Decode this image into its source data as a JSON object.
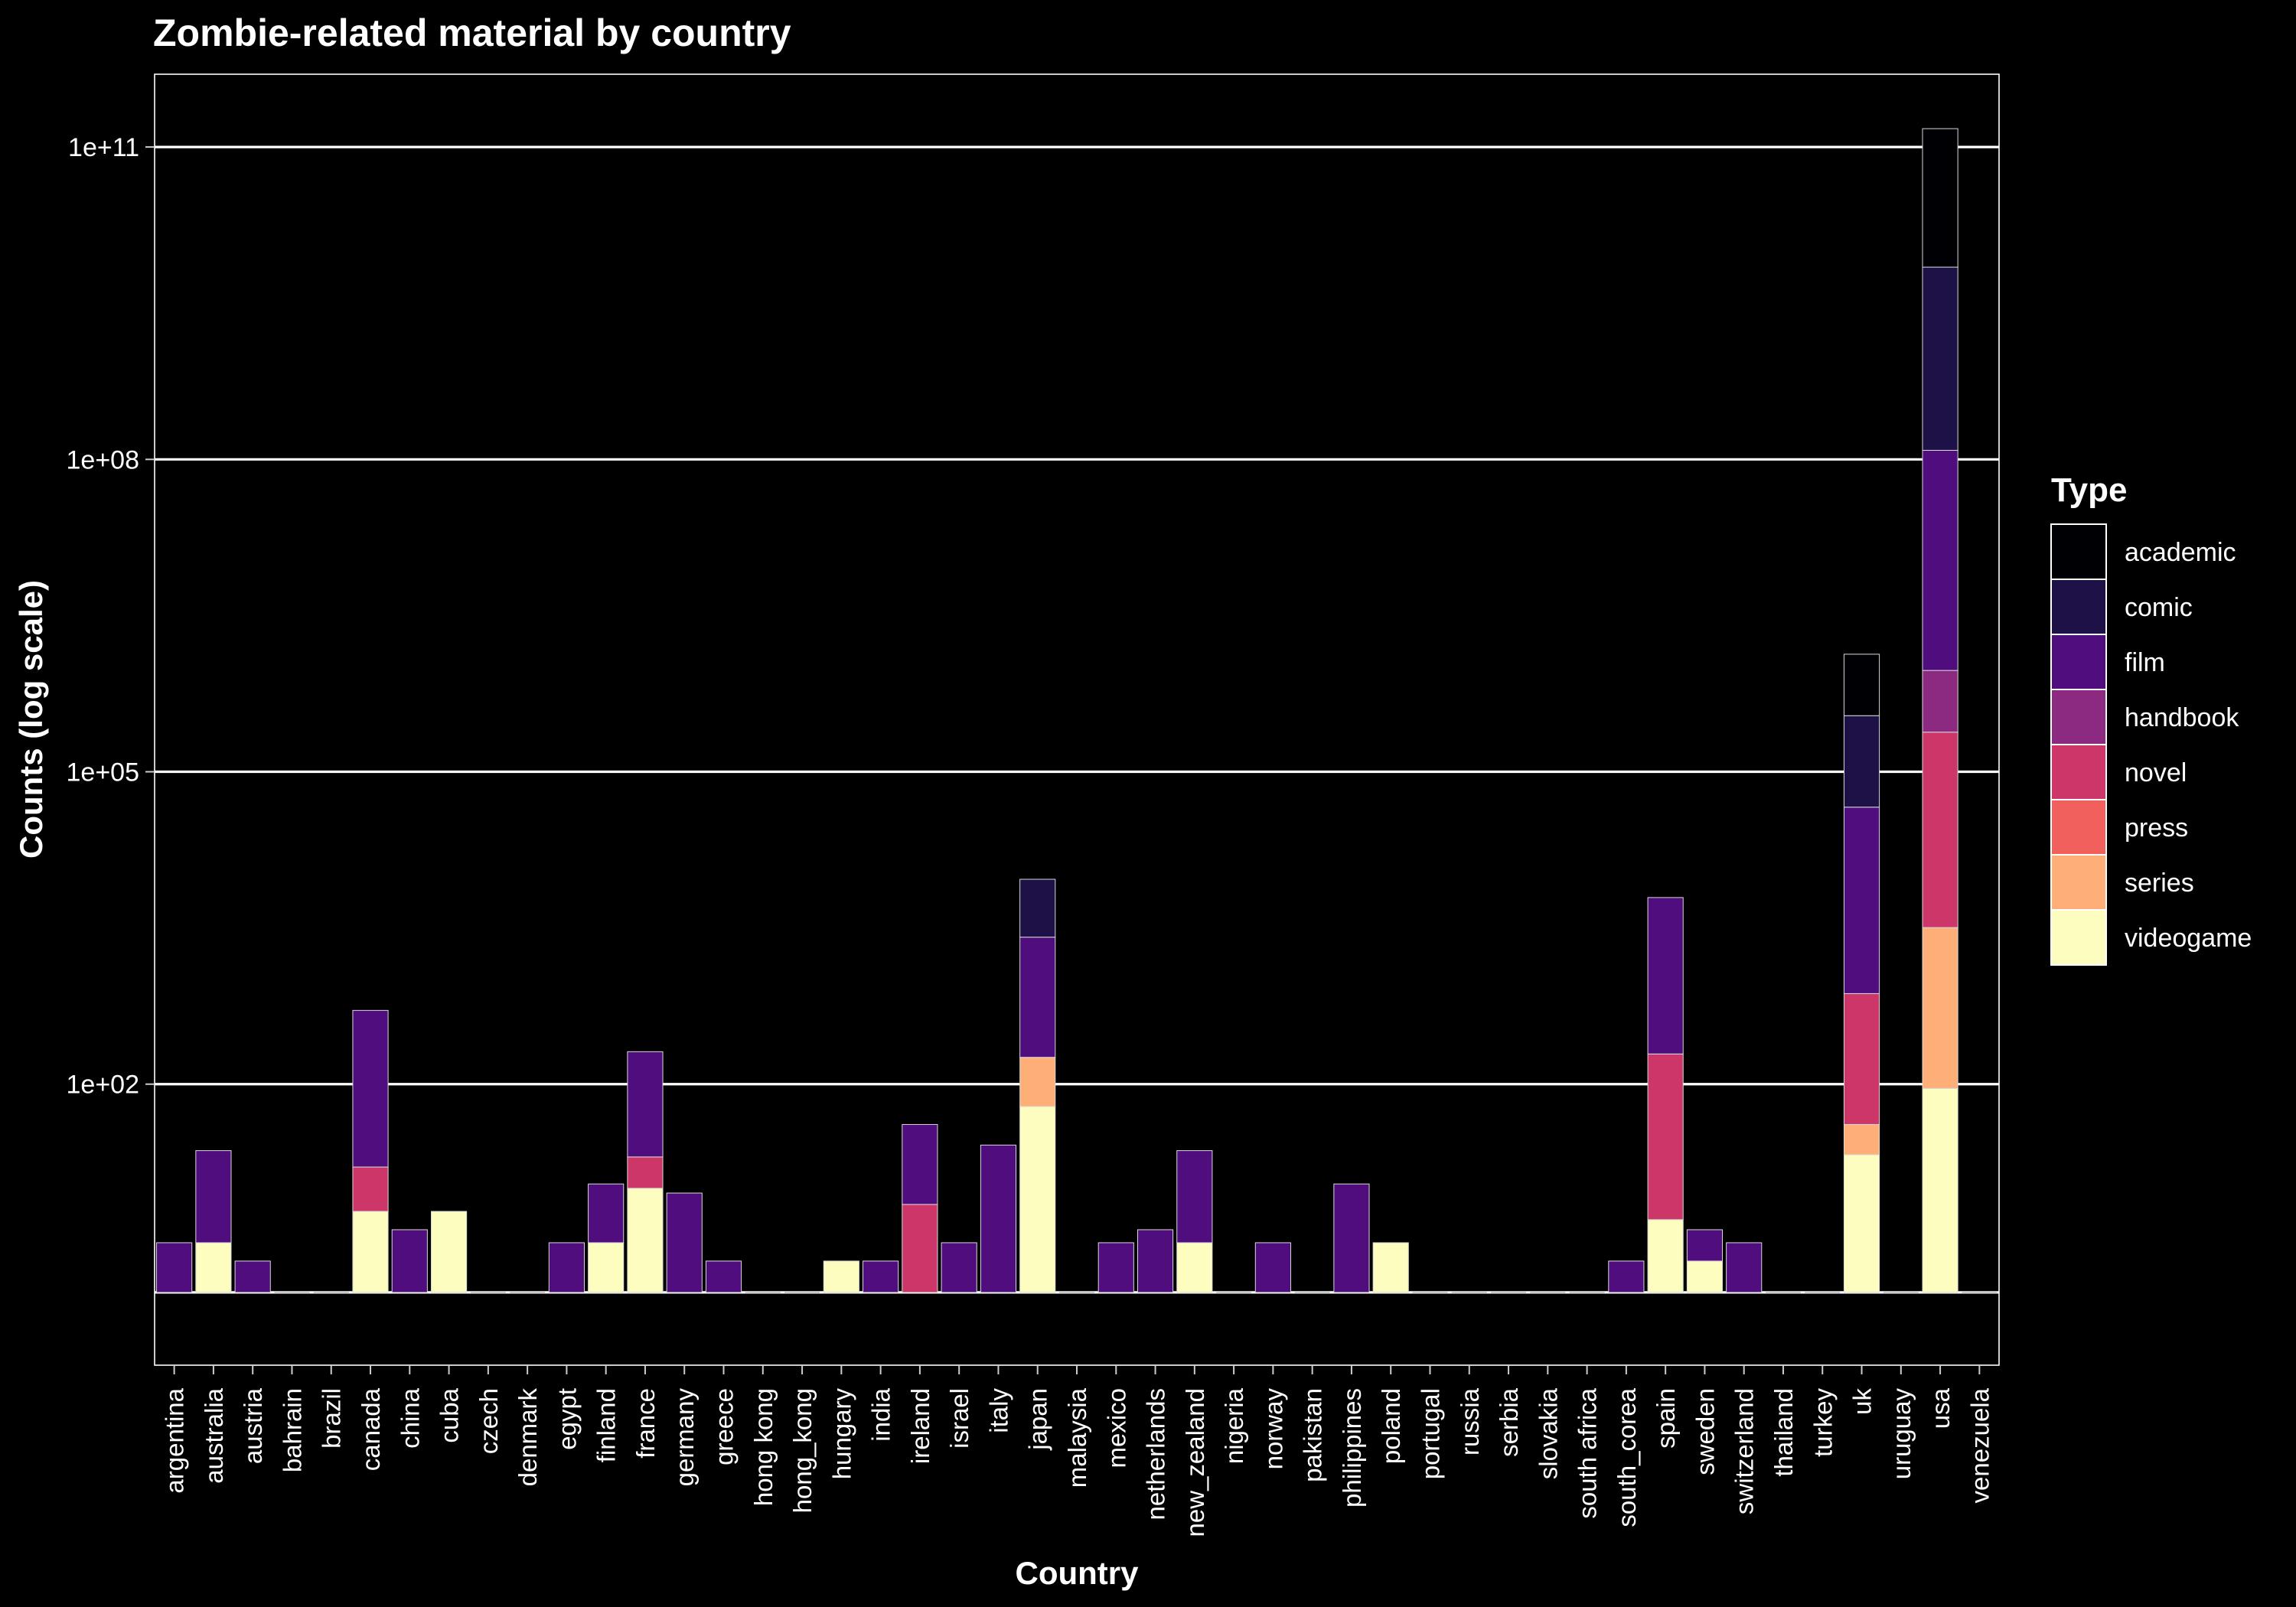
{
  "chart_data": {
    "type": "bar",
    "stacked": true,
    "title": "Zombie-related material by country",
    "xlabel": "Country",
    "ylabel": "Counts (log scale)",
    "yscale": "log10",
    "ylim": [
      0.2,
      500000000000
    ],
    "yticks": [
      100,
      100000,
      100000000,
      100000000000
    ],
    "ytick_labels": [
      "1e+02",
      "1e+05",
      "1e+08",
      "1e+11"
    ],
    "grid": true,
    "legend": {
      "title": "Type",
      "placement": "right"
    },
    "categories": [
      "argentina",
      "australia",
      "austria",
      "bahrain",
      "brazil",
      "canada",
      "china",
      "cuba",
      "czech",
      "denmark",
      "egypt",
      "finland",
      "france",
      "germany",
      "greece",
      "hong kong",
      "hong_kong",
      "hungary",
      "india",
      "ireland",
      "israel",
      "italy",
      "japan",
      "malaysia",
      "mexico",
      "netherlands",
      "new_zealand",
      "nigeria",
      "norway",
      "pakistan",
      "philippines",
      "poland",
      "portugal",
      "russia",
      "serbia",
      "slovakia",
      "south africa",
      "south_corea",
      "spain",
      "sweden",
      "switzerland",
      "thailand",
      "turkey",
      "uk",
      "uruguay",
      "usa",
      "venezuela"
    ],
    "series": [
      {
        "name": "videogame",
        "color": "#FCFDBF",
        "values": [
          0,
          2,
          0,
          0,
          0,
          5,
          0,
          5,
          0,
          0,
          0,
          2,
          9,
          0,
          0,
          0,
          0,
          1,
          0,
          0,
          0,
          0,
          60,
          0,
          0,
          0,
          2,
          0,
          0,
          0,
          0,
          2,
          0,
          0,
          0,
          0,
          0,
          0,
          4,
          1,
          0,
          0,
          0,
          20,
          0,
          90,
          0
        ]
      },
      {
        "name": "series",
        "color": "#FEAF77",
        "values": [
          0,
          0,
          0,
          0,
          0,
          0,
          0,
          0,
          0,
          0,
          0,
          0,
          0,
          0,
          0,
          0,
          0,
          0,
          0,
          0,
          0,
          0,
          120,
          0,
          0,
          0,
          0,
          0,
          0,
          0,
          0,
          0,
          0,
          0,
          0,
          0,
          0,
          0,
          0,
          0,
          0,
          0,
          0,
          20,
          0,
          3100,
          0
        ]
      },
      {
        "name": "press",
        "color": "#F1605D",
        "values": [
          0,
          0,
          0,
          0,
          0,
          0,
          0,
          0,
          0,
          0,
          0,
          0,
          0,
          0,
          0,
          0,
          0,
          0,
          0,
          0,
          0,
          0,
          0,
          0,
          0,
          0,
          0,
          0,
          0,
          0,
          0,
          0,
          0,
          0,
          0,
          0,
          0,
          0,
          0,
          0,
          0,
          0,
          0,
          0,
          0,
          0,
          0
        ]
      },
      {
        "name": "novel",
        "color": "#CD3668",
        "values": [
          0,
          0,
          0,
          0,
          0,
          10,
          0,
          0,
          0,
          0,
          0,
          0,
          10,
          0,
          0,
          0,
          0,
          0,
          0,
          6,
          0,
          0,
          0,
          0,
          0,
          0,
          0,
          0,
          0,
          0,
          0,
          0,
          0,
          0,
          0,
          0,
          0,
          0,
          190,
          0,
          0,
          0,
          0,
          700,
          0,
          237000,
          0
        ]
      },
      {
        "name": "handbook",
        "color": "#8C2981",
        "values": [
          0,
          0,
          0,
          0,
          0,
          0,
          0,
          0,
          0,
          0,
          0,
          0,
          0,
          0,
          0,
          0,
          0,
          0,
          0,
          0,
          0,
          0,
          0,
          0,
          0,
          0,
          0,
          0,
          0,
          0,
          0,
          0,
          0,
          0,
          0,
          0,
          0,
          0,
          0,
          0,
          0,
          0,
          0,
          0,
          0,
          700000,
          0
        ]
      },
      {
        "name": "film",
        "color": "#4F0D7D",
        "values": [
          2,
          20,
          1,
          0,
          0,
          495,
          3,
          0,
          0,
          0,
          2,
          8,
          185,
          8,
          1,
          0,
          0,
          0,
          1,
          34,
          2,
          25,
          2400,
          0,
          2,
          3,
          20,
          0,
          2,
          0,
          10,
          0,
          0,
          0,
          0,
          0,
          0,
          1,
          6000,
          2,
          2,
          0,
          0,
          45000,
          0,
          121300000,
          0
        ]
      },
      {
        "name": "comic",
        "color": "#1D1147",
        "values": [
          0,
          0,
          0,
          0,
          0,
          0,
          0,
          0,
          0,
          0,
          0,
          0,
          0,
          0,
          0,
          0,
          0,
          0,
          0,
          0,
          0,
          0,
          6700,
          0,
          0,
          0,
          0,
          0,
          0,
          0,
          0,
          0,
          0,
          0,
          0,
          0,
          0,
          0,
          0,
          0,
          0,
          0,
          0,
          300000,
          0,
          6900000000,
          0
        ]
      },
      {
        "name": "academic",
        "color": "#000004",
        "values": [
          0,
          0,
          0,
          0,
          0,
          0,
          0,
          0,
          0,
          0,
          0,
          0,
          0,
          0,
          0,
          0,
          0,
          0,
          0,
          0,
          0,
          0,
          0,
          0,
          0,
          0,
          0,
          0,
          0,
          0,
          0,
          0,
          0,
          0,
          0,
          0,
          0,
          0,
          0,
          0,
          0,
          0,
          0,
          1000000,
          0,
          143000000000,
          0
        ]
      }
    ]
  }
}
